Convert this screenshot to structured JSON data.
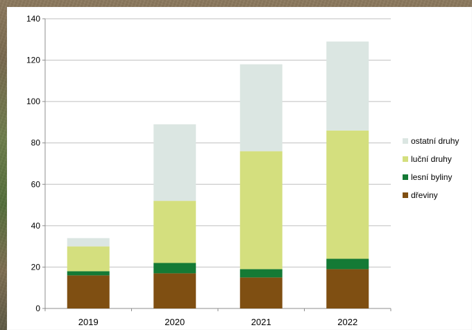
{
  "chart_data": {
    "type": "bar",
    "stacked": true,
    "categories": [
      "2019",
      "2020",
      "2021",
      "2022"
    ],
    "series": [
      {
        "name": "dřeviny",
        "color": "#7f4f12",
        "values": [
          16,
          17,
          15,
          19
        ]
      },
      {
        "name": "lesní byliny",
        "color": "#147a35",
        "values": [
          2,
          5,
          4,
          5
        ]
      },
      {
        "name": "luční druhy",
        "color": "#d4df7e",
        "values": [
          12,
          30,
          57,
          62
        ]
      },
      {
        "name": "ostatní druhy",
        "color": "#dbe6e2",
        "values": [
          4,
          37,
          42,
          43
        ]
      }
    ],
    "legend": {
      "position": "right",
      "items": [
        "ostatní druhy",
        "luční druhy",
        "lesní byliny",
        "dřeviny"
      ]
    },
    "ylim": [
      0,
      140
    ],
    "yticks": [
      0,
      20,
      40,
      60,
      80,
      100,
      120,
      140
    ],
    "grid": true
  }
}
